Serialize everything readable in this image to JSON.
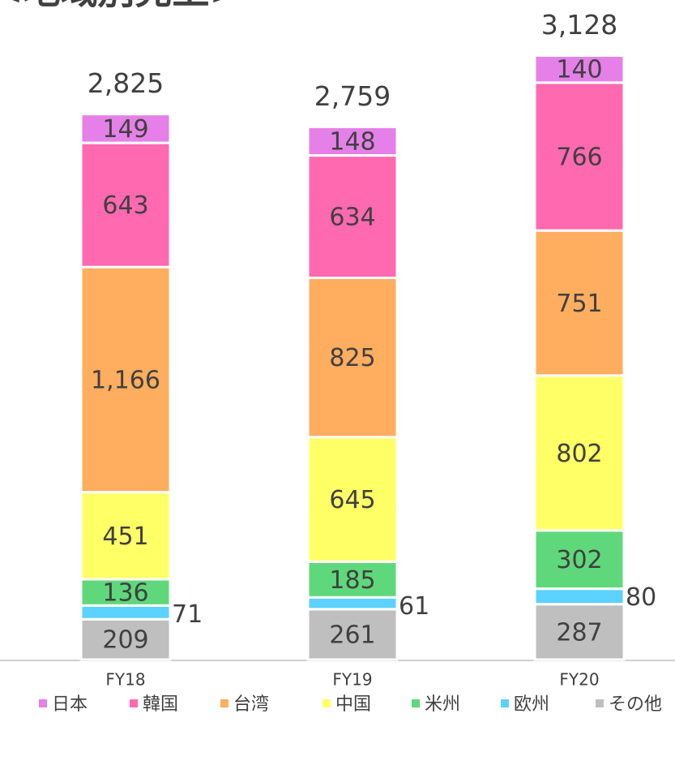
{
  "chart_data": {
    "type": "stacked_bar",
    "title": "<地域別売上>",
    "categories": [
      "FY18",
      "FY19",
      "FY20"
    ],
    "series": [
      {
        "name": "日本",
        "color": "#e580e8",
        "values": [
          149,
          148,
          140
        ]
      },
      {
        "name": "韓国",
        "color": "#ff69b0",
        "values": [
          643,
          634,
          766
        ]
      },
      {
        "name": "台湾",
        "color": "#ffad5f",
        "values": [
          1166,
          825,
          751
        ],
        "value_labels": [
          "1,166",
          "825",
          "751"
        ]
      },
      {
        "name": "中国",
        "color": "#ffff66",
        "values": [
          451,
          645,
          802
        ]
      },
      {
        "name": "米州",
        "color": "#5fd87b",
        "values": [
          136,
          185,
          302
        ]
      },
      {
        "name": "欧州",
        "color": "#5bd2ff",
        "values": [
          71,
          61,
          80
        ]
      },
      {
        "name": "その他",
        "color": "#bfbfbf",
        "values": [
          209,
          261,
          287
        ]
      }
    ],
    "totals": [
      2825,
      2759,
      3128
    ],
    "total_labels": [
      "2,825",
      "2,759",
      "3,128"
    ],
    "ylim": [
      0,
      3000
    ],
    "legend": "bottom"
  }
}
